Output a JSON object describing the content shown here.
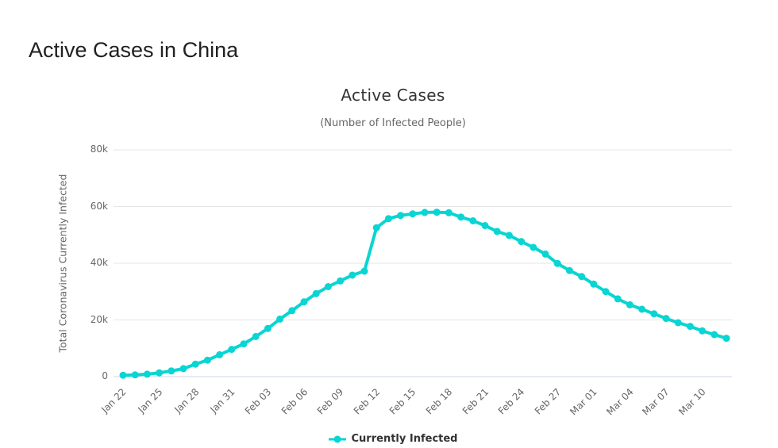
{
  "page": {
    "title": "Active Cases in China"
  },
  "chart_data": {
    "type": "line",
    "title": "Active Cases",
    "subtitle": "(Number of Infected People)",
    "xlabel": "",
    "ylabel": "Total Coronavirus Currently Infected",
    "ylim": [
      0,
      80000
    ],
    "grid": true,
    "legend_position": "bottom",
    "line_color": "#09d5d3",
    "grid_color": "#e6e6e6",
    "axis_line_color": "#ccd6eb",
    "tick_label_color": "#666666",
    "x_tick_step": 3,
    "y_ticks": [
      {
        "value": 0,
        "label": "0"
      },
      {
        "value": 20000,
        "label": "20k"
      },
      {
        "value": 40000,
        "label": "40k"
      },
      {
        "value": 60000,
        "label": "60k"
      },
      {
        "value": 80000,
        "label": "80k"
      }
    ],
    "x": [
      "Jan 22",
      "Jan 23",
      "Jan 24",
      "Jan 25",
      "Jan 26",
      "Jan 27",
      "Jan 28",
      "Jan 29",
      "Jan 30",
      "Jan 31",
      "Feb 01",
      "Feb 02",
      "Feb 03",
      "Feb 04",
      "Feb 05",
      "Feb 06",
      "Feb 07",
      "Feb 08",
      "Feb 09",
      "Feb 10",
      "Feb 11",
      "Feb 12",
      "Feb 13",
      "Feb 14",
      "Feb 15",
      "Feb 16",
      "Feb 17",
      "Feb 18",
      "Feb 19",
      "Feb 20",
      "Feb 21",
      "Feb 22",
      "Feb 23",
      "Feb 24",
      "Feb 25",
      "Feb 26",
      "Feb 27",
      "Feb 28",
      "Feb 29",
      "Mar 01",
      "Mar 02",
      "Mar 03",
      "Mar 04",
      "Mar 05",
      "Mar 06",
      "Mar 07",
      "Mar 08",
      "Mar 09",
      "Mar 10",
      "Mar 11",
      "Mar 12"
    ],
    "series": [
      {
        "name": "Currently Infected",
        "color": "#09d5d3",
        "values": [
          510,
          613,
          857,
          1353,
          2010,
          2823,
          4409,
          5805,
          7734,
          9613,
          11562,
          14148,
          16988,
          20295,
          23282,
          26380,
          29280,
          31751,
          33773,
          35797,
          37198,
          52526,
          55748,
          56873,
          57416,
          57934,
          58016,
          57805,
          56303,
          54965,
          53284,
          51227,
          49824,
          47672,
          45604,
          43258,
          39919,
          37414,
          35329,
          32652,
          30004,
          27433,
          25352,
          23784,
          22177,
          20533,
          19016,
          17721,
          16145,
          14831,
          13526
        ]
      }
    ]
  }
}
